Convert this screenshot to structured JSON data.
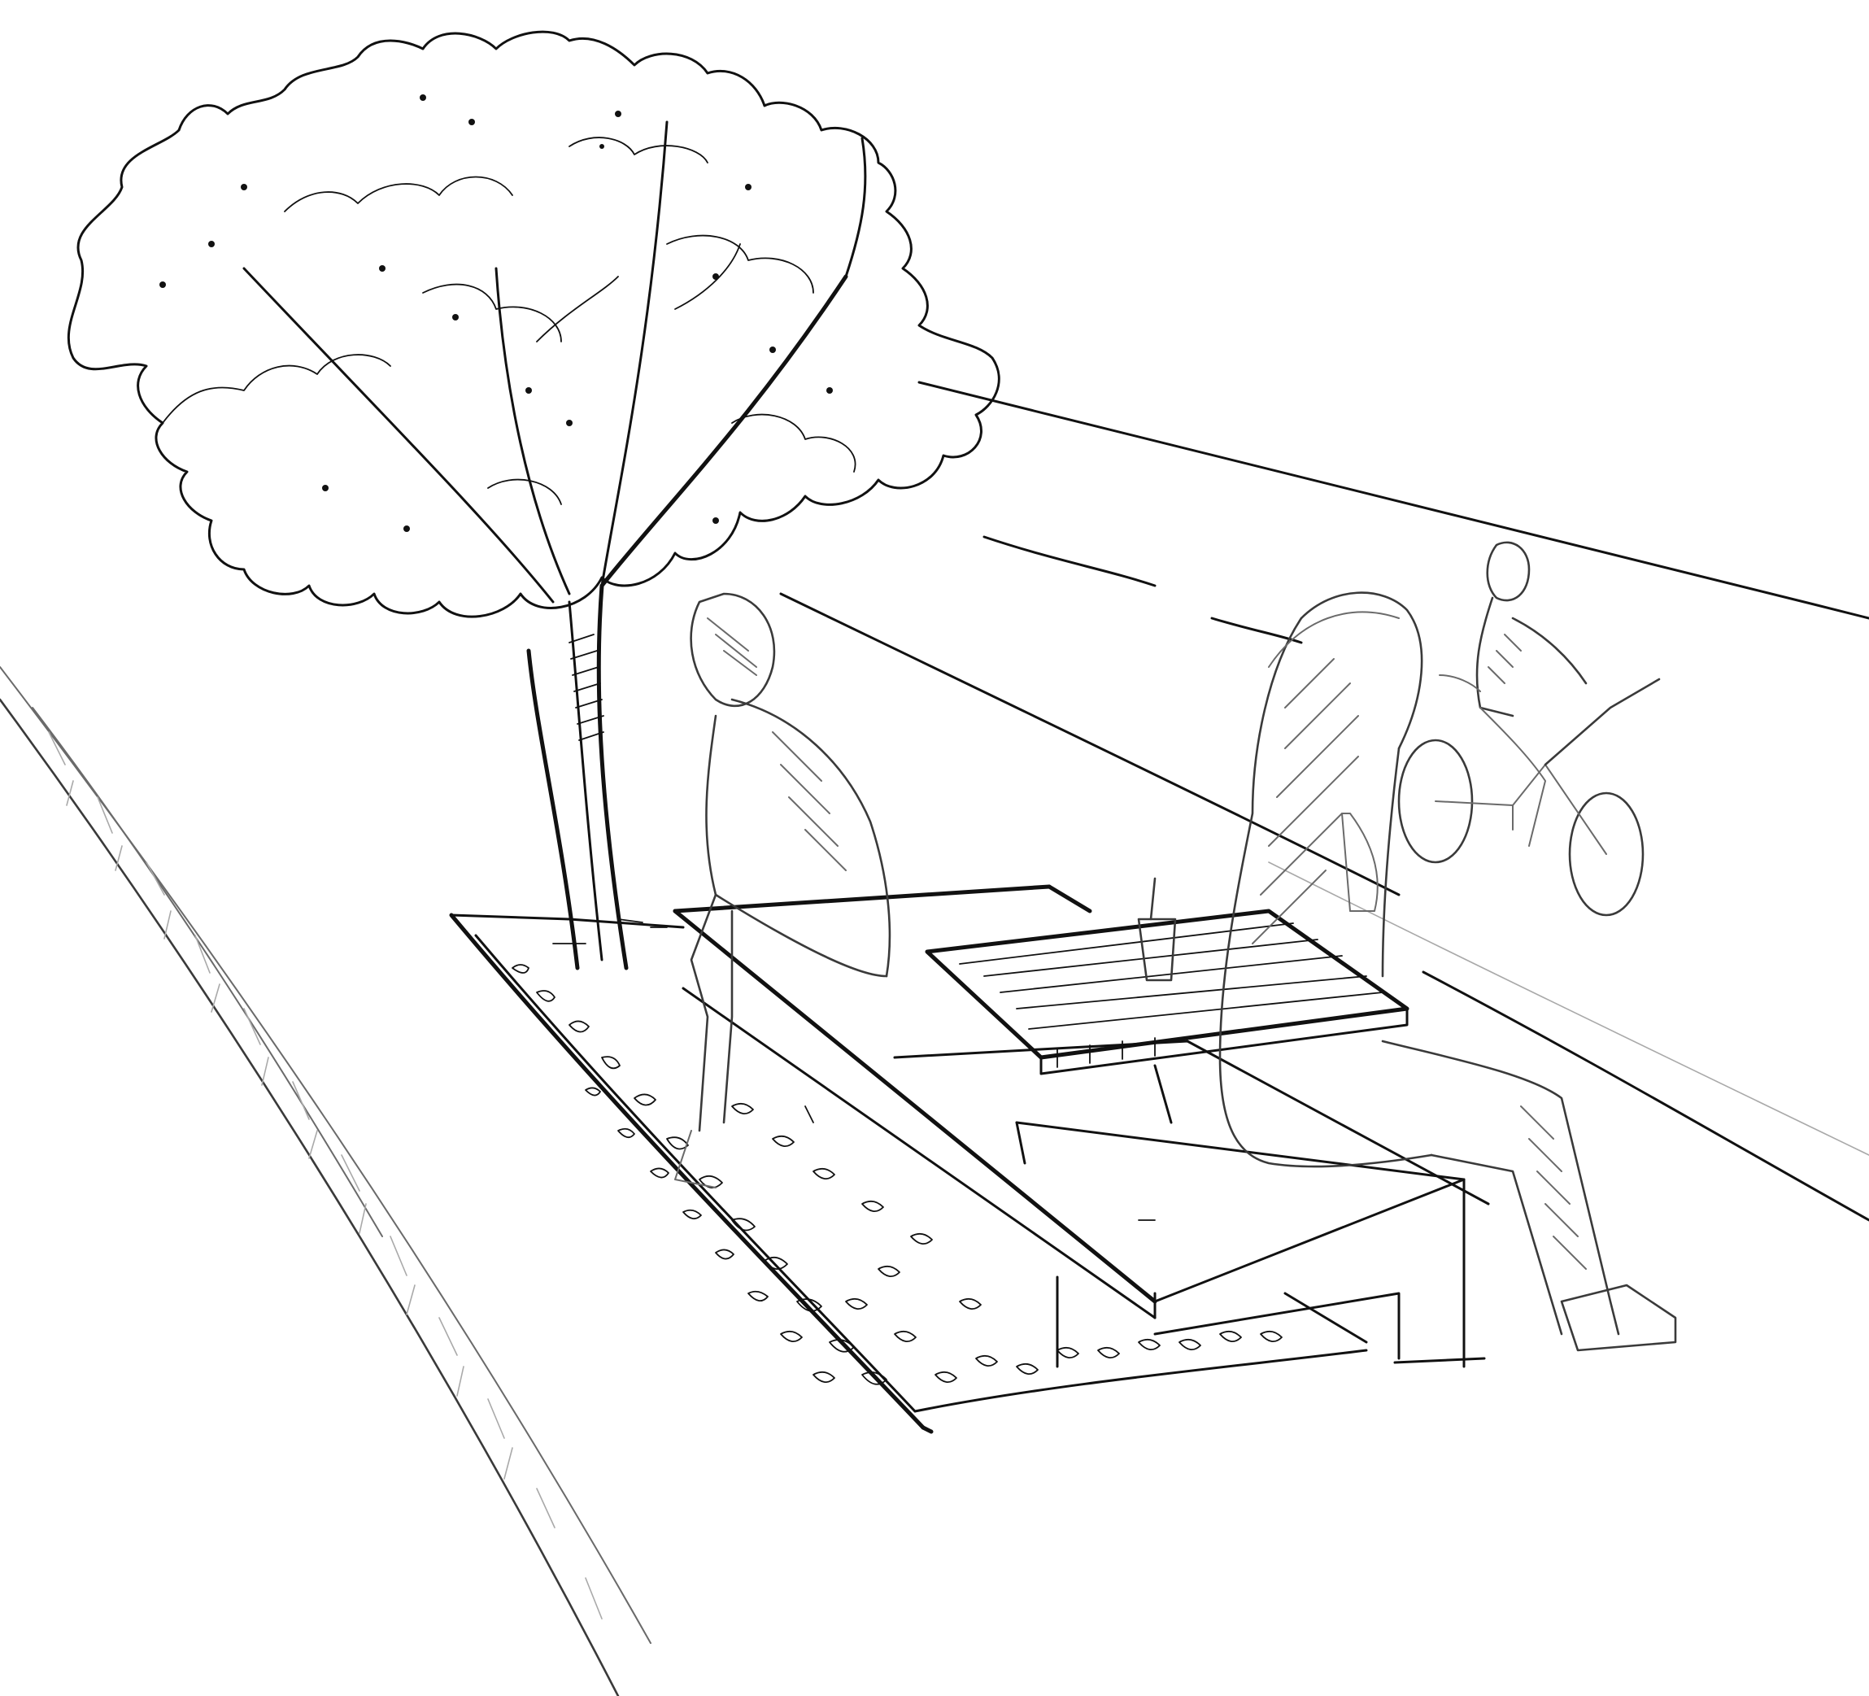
{
  "colors": {
    "paper": "#ffffff",
    "ink": "#111111",
    "pencil": "#6a6a6a",
    "pencil_light": "#a9a9a9"
  },
  "scene": {
    "elements": [
      "tree-icon",
      "planter-bed",
      "gravel-fill",
      "concrete-bench",
      "wood-slat-table",
      "cup-icon",
      "seated-person-left",
      "seated-person-right",
      "cyclist-icon",
      "street-curb",
      "road-edge-lines"
    ]
  }
}
